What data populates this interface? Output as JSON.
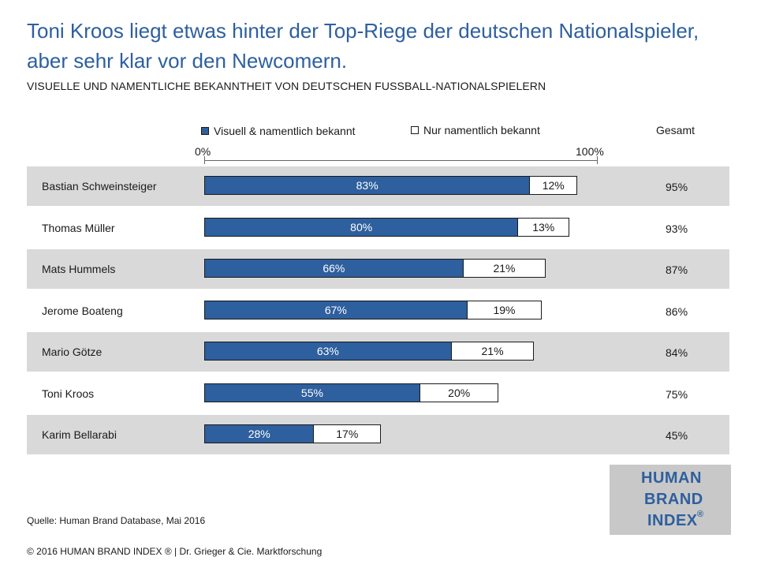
{
  "title": "Toni Kroos liegt etwas hinter der Top-Riege der deutschen Nationalspieler, aber sehr klar vor den Newcomern.",
  "subtitle": "VISUELLE UND NAMENTLICHE BEKANNTHEIT VON DEUTSCHEN FUSSBALL-NATIONALSPIELERN",
  "legend": {
    "visual": "Visuell & namentlich  bekannt",
    "name": "Nur namentlich  bekannt",
    "total": "Gesamt"
  },
  "axis": {
    "min_label": "0%",
    "max_label": "100%"
  },
  "colors": {
    "visual": "#2e5f9e",
    "name": "#ffffff",
    "row_shade": "#d9d9d9",
    "title": "#2e5f9e"
  },
  "chart_data": {
    "type": "bar",
    "orientation": "horizontal",
    "stacked": true,
    "xlim": [
      0,
      100
    ],
    "categories": [
      "Bastian Schweinsteiger",
      "Thomas Müller",
      "Mats Hummels",
      "Jerome Boateng",
      "Mario Götze",
      "Toni Kroos",
      "Karim Bellarabi"
    ],
    "series": [
      {
        "name": "Visuell & namentlich  bekannt",
        "values": [
          83,
          80,
          66,
          67,
          63,
          55,
          28
        ],
        "labels": [
          "83%",
          "80%",
          "66%",
          "67%",
          "63%",
          "55%",
          "28%"
        ]
      },
      {
        "name": "Nur namentlich  bekannt",
        "values": [
          12,
          13,
          21,
          19,
          21,
          20,
          17
        ],
        "labels": [
          "12%",
          "13%",
          "21%",
          "19%",
          "21%",
          "20%",
          "17%"
        ]
      }
    ],
    "totals": [
      "95%",
      "93%",
      "87%",
      "86%",
      "84%",
      "75%",
      "45%"
    ]
  },
  "source": "Quelle: Human Brand Database, Mai 2016",
  "footer": "© 2016 HUMAN BRAND INDEX  ® | Dr. Grieger  & Cie.  Marktforschung",
  "logo": {
    "line1": "HUMAN",
    "line2": "BRAND",
    "line3": "INDEX",
    "mark": "®"
  }
}
